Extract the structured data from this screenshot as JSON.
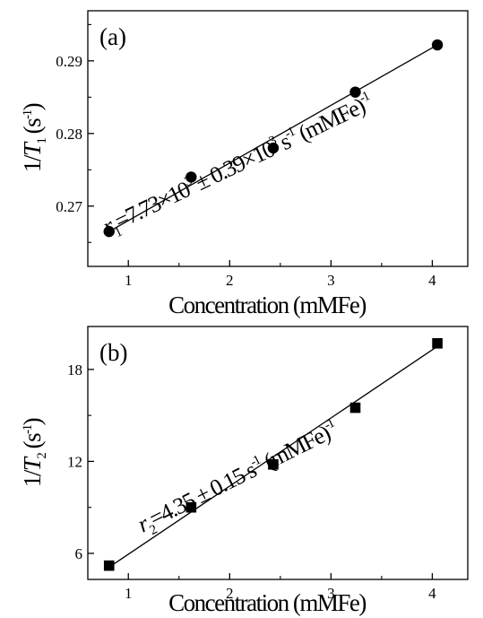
{
  "chart_data": [
    {
      "type": "scatter",
      "panel_label": "(a)",
      "xlabel": "Concentration (mMFe)",
      "ylabel": {
        "prefix": "1/",
        "var": "T",
        "sub": "1",
        "unit_open": " (s",
        "unit_sup": "-1",
        "unit_close": ")"
      },
      "xlim": [
        0.6,
        4.35
      ],
      "ylim": [
        0.2617,
        0.2969
      ],
      "xticks": [
        1,
        2,
        3,
        4
      ],
      "yticks": [
        0.27,
        0.28,
        0.29
      ],
      "ytick_labels": [
        "0.27",
        "0.28",
        "0.29"
      ],
      "marker": "circle",
      "series": [
        {
          "x": [
            0.81,
            1.62,
            2.43,
            3.24,
            4.05
          ],
          "y": [
            0.2665,
            0.274,
            0.278,
            0.2857,
            0.2922
          ]
        }
      ],
      "fit_line": {
        "x": [
          0.81,
          4.05
        ],
        "y": [
          0.2665,
          0.2922
        ]
      },
      "annotation": {
        "r_sym": "r",
        "r_sub": "1",
        "parts": [
          "=7.73×10",
          "3",
          " ± 0.39×10",
          "3",
          " s",
          "-1",
          " (mMFe)",
          "-1"
        ]
      }
    },
    {
      "type": "scatter",
      "panel_label": "(b)",
      "xlabel": "Concentration (mMFe)",
      "ylabel": {
        "prefix": "1/",
        "var": "T",
        "sub": "2",
        "unit_open": " (s",
        "unit_sup": "-1",
        "unit_close": ")"
      },
      "xlim": [
        0.6,
        4.35
      ],
      "ylim": [
        4.3,
        20.8
      ],
      "xticks": [
        1,
        2,
        3,
        4
      ],
      "yticks": [
        6,
        12,
        18
      ],
      "ytick_labels": [
        "6",
        "12",
        "18"
      ],
      "marker": "square",
      "series": [
        {
          "x": [
            0.81,
            1.62,
            2.43,
            3.24,
            4.05
          ],
          "y": [
            5.2,
            9.0,
            11.8,
            15.5,
            19.7
          ]
        }
      ],
      "fit_line": {
        "x": [
          0.81,
          4.05
        ],
        "y": [
          5.1,
          19.5
        ]
      },
      "annotation": {
        "r_sym": "r",
        "r_sub": "2",
        "parts": [
          "=4.35 ± 0.15 s",
          "-1",
          " (mMFe)",
          "-1"
        ]
      }
    }
  ]
}
